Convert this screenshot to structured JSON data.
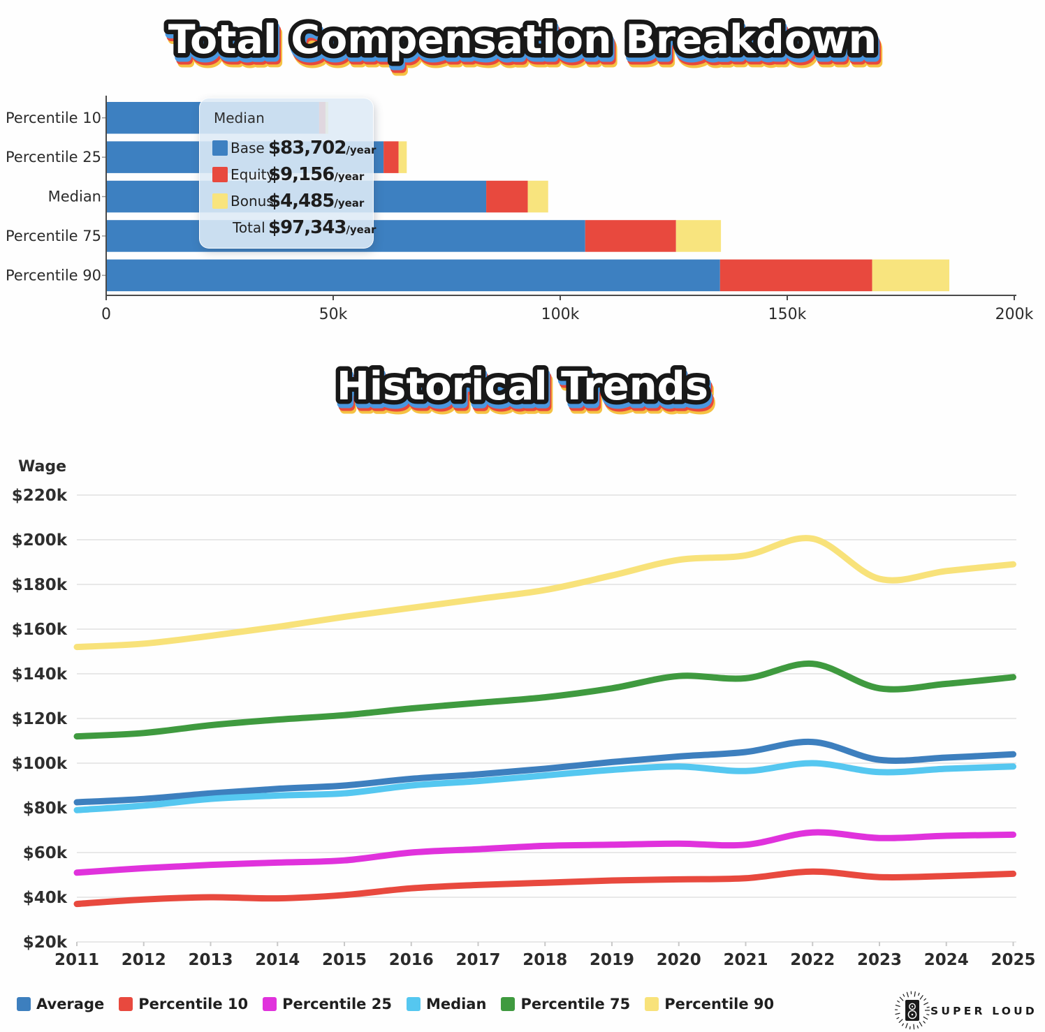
{
  "titles": {
    "breakdown": "Total Compensation Breakdown",
    "trends": "Historical Trends"
  },
  "colors": {
    "base": "#3d80c1",
    "equity": "#e8493e",
    "bonus": "#f8e47e",
    "average": "#3d7fbe",
    "p10": "#e8493e",
    "p25": "#e032dc",
    "median": "#55c7f0",
    "p75": "#3f9a3f",
    "p90": "#f8e27a",
    "grid": "#e4e4e4",
    "axis": "#4a4a4a",
    "tick": "#999999",
    "text": "#2b2b2b",
    "logo_ink": "#1a1a1a"
  },
  "tooltip": {
    "title": "Median",
    "rows": [
      {
        "label": "Base",
        "value": "$83,702",
        "suffix": "/year",
        "color_key": "base"
      },
      {
        "label": "Equity",
        "value": "$9,156",
        "suffix": "/year",
        "color_key": "equity"
      },
      {
        "label": "Bonus",
        "value": "$4,485",
        "suffix": "/year",
        "color_key": "bonus"
      }
    ],
    "total": {
      "label": "Total",
      "value": "$97,343",
      "suffix": "/year"
    }
  },
  "chart_data": [
    {
      "type": "bar",
      "orientation": "horizontal",
      "title": "Total Compensation Breakdown",
      "unit": "USD thousands per year",
      "categories": [
        "Percentile 10",
        "Percentile 25",
        "Median",
        "Percentile 75",
        "Percentile 90"
      ],
      "series": [
        {
          "name": "Base",
          "color_key": "base",
          "values": [
            46.9,
            61.1,
            83.702,
            105.5,
            135.2
          ]
        },
        {
          "name": "Equity",
          "color_key": "equity",
          "values": [
            1.4,
            3.3,
            9.156,
            20.0,
            33.5
          ]
        },
        {
          "name": "Bonus",
          "color_key": "bonus",
          "values": [
            0.6,
            1.8,
            4.485,
            9.9,
            17.0
          ]
        }
      ],
      "xlim": [
        0,
        200
      ],
      "x_ticks": [
        "0",
        "50k",
        "100k",
        "150k",
        "200k"
      ],
      "x_tick_values": [
        0,
        50,
        100,
        150,
        200
      ],
      "grid": false
    },
    {
      "type": "line",
      "title": "Historical Trends",
      "ylabel": "Wage",
      "unit": "USD thousands per year",
      "x": [
        2011,
        2012,
        2013,
        2014,
        2015,
        2016,
        2017,
        2018,
        2019,
        2020,
        2021,
        2022,
        2023,
        2024,
        2025
      ],
      "x_tick_labels": [
        "2011",
        "2012",
        "2013",
        "2014",
        "2015",
        "2016",
        "2017",
        "2018",
        "2019",
        "2020",
        "2021",
        "2022",
        "2023",
        "2024",
        "2025"
      ],
      "ylim": [
        20,
        220
      ],
      "y_tick_values": [
        220,
        200,
        180,
        160,
        140,
        120,
        100,
        80,
        60,
        40,
        20
      ],
      "y_tick_labels": [
        "$220k",
        "$200k",
        "$180k",
        "$160k",
        "$140k",
        "$120k",
        "$100k",
        "$80k",
        "$60k",
        "$40k",
        "$20k"
      ],
      "grid": true,
      "legend_position": "bottom-left",
      "series": [
        {
          "name": "Average",
          "color_key": "average",
          "values": [
            82.5,
            84,
            86.5,
            88.5,
            90,
            93,
            95,
            97.5,
            100.5,
            103,
            105,
            109.5,
            101.5,
            102.5,
            104
          ]
        },
        {
          "name": "Percentile 10",
          "color_key": "p10",
          "values": [
            37,
            39,
            40,
            39.5,
            41,
            44,
            45.5,
            46.5,
            47.5,
            48,
            48.5,
            51.5,
            49,
            49.5,
            50.5
          ]
        },
        {
          "name": "Percentile 25",
          "color_key": "p25",
          "values": [
            51,
            53,
            54.5,
            55.5,
            56.5,
            60,
            61.5,
            63,
            63.5,
            64,
            63.5,
            69,
            66.5,
            67.5,
            68
          ]
        },
        {
          "name": "Median",
          "color_key": "median",
          "values": [
            79,
            81,
            84,
            85.5,
            86.5,
            90,
            92,
            94.5,
            97,
            98.5,
            96.5,
            100,
            96,
            97.5,
            98.5
          ]
        },
        {
          "name": "Percentile 75",
          "color_key": "p75",
          "values": [
            112,
            113.5,
            117,
            119.5,
            121.5,
            124.5,
            127,
            129.5,
            133.5,
            139,
            138,
            144.5,
            133.5,
            135.5,
            138.5
          ]
        },
        {
          "name": "Percentile 90",
          "color_key": "p90",
          "values": [
            152,
            153.5,
            157,
            161,
            165.5,
            169.5,
            173.5,
            177.5,
            184,
            191,
            193,
            200.5,
            182.5,
            186,
            189
          ]
        }
      ]
    }
  ],
  "legend": {
    "items": [
      {
        "label": "Average",
        "color_key": "average"
      },
      {
        "label": "Percentile 10",
        "color_key": "p10"
      },
      {
        "label": "Percentile 25",
        "color_key": "p25"
      },
      {
        "label": "Median",
        "color_key": "median"
      },
      {
        "label": "Percentile 75",
        "color_key": "p75"
      },
      {
        "label": "Percentile 90",
        "color_key": "p90"
      }
    ]
  },
  "logo": {
    "text": "SUPER LOUD"
  }
}
